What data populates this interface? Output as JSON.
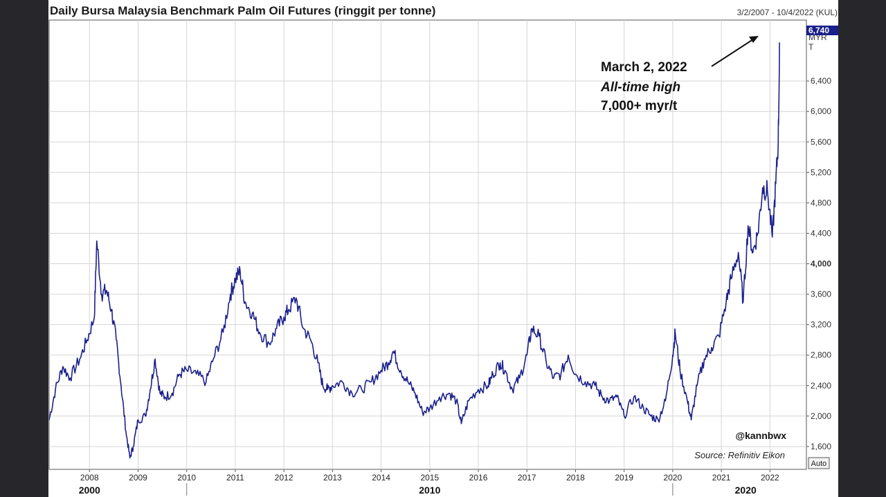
{
  "chart_data": {
    "type": "line",
    "title": "Daily Bursa Malaysia Benchmark Palm Oil Futures (ringgit per tonne)",
    "date_range": "3/2/2007 - 10/4/2022 (KUL)",
    "unit_label": [
      "MYR",
      "T"
    ],
    "last_value_label": "6,740",
    "ylim": [
      1300,
      7200
    ],
    "y_ticks": [
      {
        "value": 1600,
        "label": "1,600"
      },
      {
        "value": 2000,
        "label": "2,000"
      },
      {
        "value": 2400,
        "label": "2,400"
      },
      {
        "value": 2800,
        "label": "2,800"
      },
      {
        "value": 3200,
        "label": "3,200"
      },
      {
        "value": 3600,
        "label": "3,600"
      },
      {
        "value": 4000,
        "label": "4,000",
        "bold": true
      },
      {
        "value": 4400,
        "label": "4,400"
      },
      {
        "value": 4800,
        "label": "4,800"
      },
      {
        "value": 5200,
        "label": "5,200"
      },
      {
        "value": 5600,
        "label": "5,600"
      },
      {
        "value": 6000,
        "label": "6,000"
      },
      {
        "value": 6400,
        "label": "6,400"
      }
    ],
    "xlim": [
      2007.17,
      2022.75
    ],
    "x_ticks": [
      {
        "value": 2008.0,
        "label": "2008"
      },
      {
        "value": 2009.0,
        "label": "2009"
      },
      {
        "value": 2010.0,
        "label": "2010"
      },
      {
        "value": 2011.0,
        "label": "2011"
      },
      {
        "value": 2012.0,
        "label": "2012"
      },
      {
        "value": 2013.0,
        "label": "2013"
      },
      {
        "value": 2014.0,
        "label": "2014"
      },
      {
        "value": 2015.0,
        "label": "2015"
      },
      {
        "value": 2016.0,
        "label": "2016"
      },
      {
        "value": 2017.0,
        "label": "2017"
      },
      {
        "value": 2018.0,
        "label": "2018"
      },
      {
        "value": 2019.0,
        "label": "2019"
      },
      {
        "value": 2020.0,
        "label": "2020"
      },
      {
        "value": 2021.0,
        "label": "2021"
      },
      {
        "value": 2022.0,
        "label": "2022"
      }
    ],
    "decade_labels": [
      {
        "value": 2008.0,
        "label": "2000"
      },
      {
        "value": 2015.0,
        "label": "2010"
      },
      {
        "value": 2021.5,
        "label": "2020"
      }
    ],
    "decade_dividers": [
      2010.0,
      2020.0
    ],
    "grid": true,
    "series": [
      {
        "color": "#1a1f8c",
        "x": [
          2007.17,
          2007.3,
          2007.45,
          2007.6,
          2007.8,
          2007.95,
          2008.1,
          2008.15,
          2008.25,
          2008.35,
          2008.45,
          2008.55,
          2008.65,
          2008.75,
          2008.83,
          2008.9,
          2009.0,
          2009.15,
          2009.25,
          2009.35,
          2009.45,
          2009.55,
          2009.7,
          2009.85,
          2010.0,
          2010.2,
          2010.4,
          2010.55,
          2010.75,
          2010.9,
          2011.0,
          2011.1,
          2011.2,
          2011.35,
          2011.5,
          2011.7,
          2011.85,
          2012.0,
          2012.1,
          2012.25,
          2012.4,
          2012.55,
          2012.7,
          2012.8,
          2012.9,
          2013.0,
          2013.2,
          2013.4,
          2013.6,
          2013.8,
          2014.0,
          2014.15,
          2014.25,
          2014.4,
          2014.55,
          2014.7,
          2014.85,
          2015.0,
          2015.2,
          2015.4,
          2015.55,
          2015.65,
          2015.8,
          2016.0,
          2016.2,
          2016.3,
          2016.45,
          2016.55,
          2016.7,
          2016.85,
          2017.0,
          2017.1,
          2017.25,
          2017.4,
          2017.55,
          2017.7,
          2017.85,
          2018.0,
          2018.2,
          2018.4,
          2018.55,
          2018.7,
          2018.85,
          2019.0,
          2019.2,
          2019.4,
          2019.55,
          2019.7,
          2019.85,
          2020.0,
          2020.05,
          2020.15,
          2020.3,
          2020.38,
          2020.5,
          2020.65,
          2020.8,
          2020.95,
          2021.1,
          2021.2,
          2021.35,
          2021.45,
          2021.55,
          2021.65,
          2021.75,
          2021.85,
          2021.95,
          2022.05,
          2022.12,
          2022.17,
          2022.2
        ],
        "y": [
          1950,
          2350,
          2650,
          2500,
          2750,
          3000,
          3300,
          4300,
          3600,
          3650,
          3400,
          3000,
          2400,
          1800,
          1450,
          1600,
          1950,
          2000,
          2350,
          2750,
          2300,
          2250,
          2300,
          2550,
          2600,
          2550,
          2450,
          2750,
          3100,
          3600,
          3800,
          3900,
          3500,
          3350,
          3100,
          2950,
          3150,
          3300,
          3400,
          3550,
          3150,
          3000,
          2700,
          2400,
          2350,
          2400,
          2450,
          2300,
          2350,
          2450,
          2600,
          2700,
          2850,
          2600,
          2450,
          2300,
          2050,
          2100,
          2250,
          2300,
          2200,
          1900,
          2200,
          2350,
          2400,
          2550,
          2700,
          2600,
          2350,
          2500,
          2800,
          3150,
          3050,
          2700,
          2500,
          2550,
          2800,
          2550,
          2450,
          2400,
          2250,
          2200,
          2250,
          2000,
          2250,
          2100,
          2000,
          1950,
          2200,
          2800,
          3100,
          2600,
          2200,
          1950,
          2400,
          2750,
          2900,
          3050,
          3500,
          3800,
          4150,
          3500,
          4500,
          4150,
          4400,
          5000,
          4950,
          4350,
          5050,
          5600,
          6900
        ]
      }
    ],
    "annotation": {
      "line1": "March 2, 2022",
      "line2": "All-time high",
      "line3": "7,000+ myr/t",
      "date": 2022.17,
      "value": 6850
    },
    "handle": "@kannbwx",
    "source": "Source: Refinitiv Eikon",
    "auto_button": "Auto"
  }
}
